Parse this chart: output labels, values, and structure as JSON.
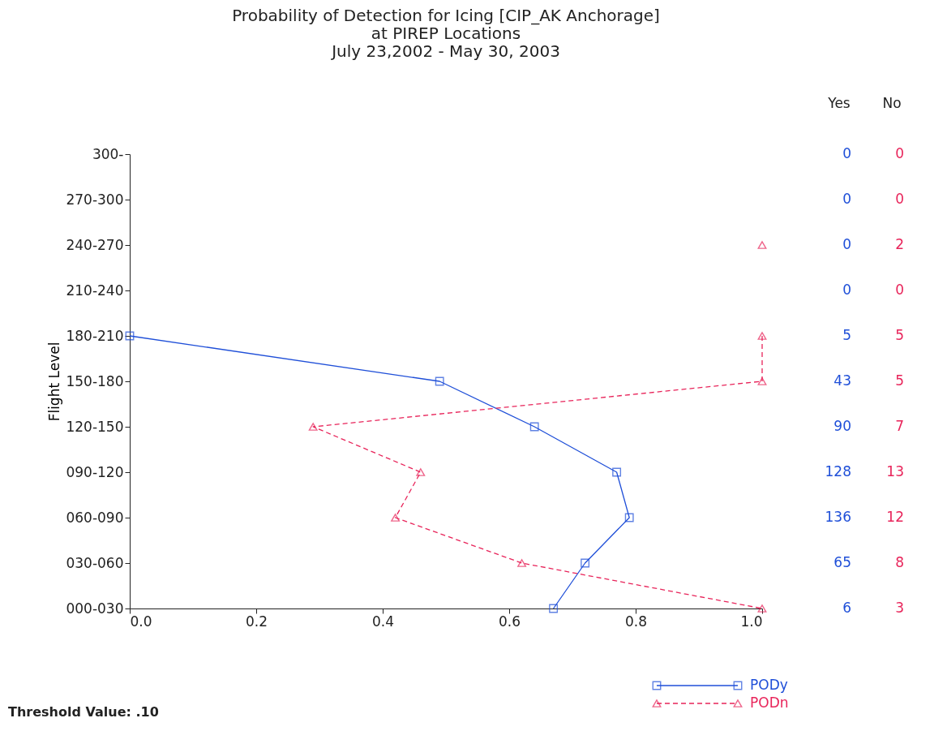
{
  "chart_data": {
    "type": "line",
    "orientation": "horizontal",
    "title": [
      "Probability of Detection for Icing [CIP_AK Anchorage]",
      "at PIREP Locations",
      "July 23,2002 - May 30, 2003"
    ],
    "ylabel": "Flight Level",
    "categories": [
      "300-",
      "270-300",
      "240-270",
      "210-240",
      "180-210",
      "150-180",
      "120-150",
      "090-120",
      "060-090",
      "030-060",
      "000-030"
    ],
    "series": [
      {
        "name": "PODy",
        "color": "#1f4fd8",
        "marker": "square",
        "line_style": "solid",
        "values": [
          null,
          null,
          null,
          null,
          0.0,
          0.49,
          0.64,
          0.77,
          0.79,
          0.72,
          0.67
        ]
      },
      {
        "name": "PODn",
        "color": "#e8245a",
        "marker": "triangle",
        "line_style": "dashed",
        "values": [
          null,
          null,
          1.0,
          null,
          1.0,
          1.0,
          0.29,
          0.46,
          0.42,
          0.62,
          1.0
        ]
      }
    ],
    "xlim": [
      0,
      1
    ],
    "xticks": [
      {
        "value": 0,
        "label": "0.0"
      },
      0.2,
      0.4,
      0.6,
      0.8,
      {
        "value": 1,
        "label": "1.0"
      }
    ],
    "grid": false,
    "legend": "bottom right",
    "annotations": [
      "Yes",
      "No",
      "0",
      "0",
      "0",
      "0",
      "0",
      "2",
      "0",
      "0",
      "5",
      "5",
      "43",
      "5",
      "90",
      "7",
      "128",
      "13",
      "136",
      "12",
      "65",
      "8",
      "6",
      "3",
      "Threshold Value:  .10"
    ]
  }
}
